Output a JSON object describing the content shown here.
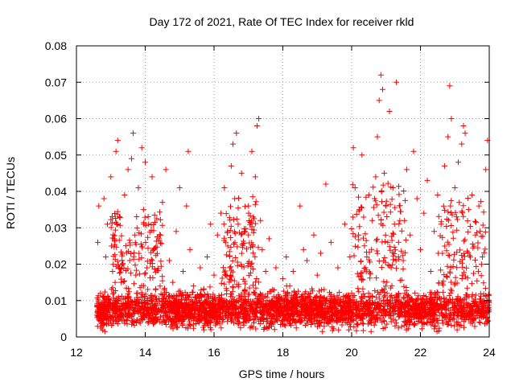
{
  "chart_data": {
    "type": "scatter",
    "title": "Day 172 of 2021, Rate Of TEC Index for receiver rkld",
    "xlabel": "GPS time / hours",
    "ylabel": "ROTI / TECUs",
    "xlim": [
      12,
      24
    ],
    "ylim": [
      0,
      0.08
    ],
    "xticks": [
      12,
      14,
      16,
      18,
      20,
      22,
      24
    ],
    "xtick_labels": [
      "12",
      "14",
      "16",
      "18",
      "20",
      "22",
      "24"
    ],
    "yticks": [
      0,
      0.01,
      0.02,
      0.03,
      0.04,
      0.05,
      0.06,
      0.07,
      0.08
    ],
    "ytick_labels": [
      "0",
      "0.01",
      "0.02",
      "0.03",
      "0.04",
      "0.05",
      "0.06",
      "0.07",
      "0.08"
    ],
    "grid": true,
    "marker": "+",
    "color": "#ff0000",
    "series": [
      {
        "name": "ROTI",
        "points": [
          [
            12.62,
            0.026
          ],
          [
            12.65,
            0.036
          ],
          [
            12.7,
            0.012
          ],
          [
            12.75,
            0.008
          ],
          [
            12.8,
            0.038
          ],
          [
            12.85,
            0.022
          ],
          [
            12.9,
            0.031
          ],
          [
            12.95,
            0.009
          ],
          [
            13.0,
            0.044
          ],
          [
            13.05,
            0.018
          ],
          [
            13.1,
            0.027
          ],
          [
            13.15,
            0.051
          ],
          [
            13.2,
            0.054
          ],
          [
            13.25,
            0.033
          ],
          [
            13.3,
            0.015
          ],
          [
            13.4,
            0.039
          ],
          [
            13.5,
            0.046
          ],
          [
            13.55,
            0.021
          ],
          [
            13.6,
            0.049
          ],
          [
            13.65,
            0.056
          ],
          [
            13.7,
            0.028
          ],
          [
            13.75,
            0.012
          ],
          [
            13.8,
            0.041
          ],
          [
            13.9,
            0.052
          ],
          [
            13.95,
            0.035
          ],
          [
            14.0,
            0.048
          ],
          [
            14.05,
            0.019
          ],
          [
            14.1,
            0.031
          ],
          [
            14.2,
            0.044
          ],
          [
            14.25,
            0.024
          ],
          [
            14.3,
            0.013
          ],
          [
            14.4,
            0.027
          ],
          [
            14.5,
            0.037
          ],
          [
            14.6,
            0.046
          ],
          [
            14.7,
            0.021
          ],
          [
            14.8,
            0.015
          ],
          [
            14.9,
            0.029
          ],
          [
            15.0,
            0.041
          ],
          [
            15.1,
            0.018
          ],
          [
            15.2,
            0.036
          ],
          [
            15.25,
            0.051
          ],
          [
            15.3,
            0.024
          ],
          [
            15.4,
            0.014
          ],
          [
            15.5,
            0.011
          ],
          [
            15.6,
            0.019
          ],
          [
            15.7,
            0.013
          ],
          [
            15.8,
            0.022
          ],
          [
            15.9,
            0.031
          ],
          [
            16.0,
            0.017
          ],
          [
            16.1,
            0.028
          ],
          [
            16.2,
            0.034
          ],
          [
            16.3,
            0.041
          ],
          [
            16.4,
            0.025
          ],
          [
            16.5,
            0.047
          ],
          [
            16.55,
            0.053
          ],
          [
            16.6,
            0.038
          ],
          [
            16.65,
            0.056
          ],
          [
            16.7,
            0.031
          ],
          [
            16.8,
            0.045
          ],
          [
            16.9,
            0.029
          ],
          [
            17.0,
            0.036
          ],
          [
            17.1,
            0.051
          ],
          [
            17.2,
            0.044
          ],
          [
            17.25,
            0.058
          ],
          [
            17.3,
            0.06
          ],
          [
            17.35,
            0.032
          ],
          [
            17.4,
            0.024
          ],
          [
            17.5,
            0.018
          ],
          [
            17.6,
            0.027
          ],
          [
            17.7,
            0.013
          ],
          [
            17.8,
            0.019
          ],
          [
            17.9,
            0.011
          ],
          [
            18.0,
            0.016
          ],
          [
            18.1,
            0.022
          ],
          [
            18.2,
            0.014
          ],
          [
            18.3,
            0.018
          ],
          [
            18.5,
            0.036
          ],
          [
            18.6,
            0.024
          ],
          [
            18.7,
            0.021
          ],
          [
            18.8,
            0.012
          ],
          [
            18.9,
            0.028
          ],
          [
            19.0,
            0.017
          ],
          [
            19.1,
            0.023
          ],
          [
            19.25,
            0.042
          ],
          [
            19.4,
            0.026
          ],
          [
            19.6,
            0.019
          ],
          [
            19.8,
            0.031
          ],
          [
            19.95,
            0.022
          ],
          [
            20.05,
            0.052
          ],
          [
            20.1,
            0.041
          ],
          [
            20.2,
            0.028
          ],
          [
            20.3,
            0.05
          ],
          [
            20.4,
            0.019
          ],
          [
            20.5,
            0.039
          ],
          [
            20.6,
            0.032
          ],
          [
            20.7,
            0.044
          ],
          [
            20.75,
            0.055
          ],
          [
            20.8,
            0.065
          ],
          [
            20.85,
            0.072
          ],
          [
            20.9,
            0.068
          ],
          [
            20.95,
            0.045
          ],
          [
            21.0,
            0.036
          ],
          [
            21.05,
            0.026
          ],
          [
            21.1,
            0.062
          ],
          [
            21.2,
            0.041
          ],
          [
            21.3,
            0.07
          ],
          [
            21.4,
            0.032
          ],
          [
            21.5,
            0.021
          ],
          [
            21.6,
            0.046
          ],
          [
            21.7,
            0.028
          ],
          [
            21.8,
            0.051
          ],
          [
            21.9,
            0.038
          ],
          [
            22.0,
            0.024
          ],
          [
            22.1,
            0.034
          ],
          [
            22.2,
            0.043
          ],
          [
            22.3,
            0.018
          ],
          [
            22.4,
            0.029
          ],
          [
            22.5,
            0.039
          ],
          [
            22.6,
            0.031
          ],
          [
            22.7,
            0.047
          ],
          [
            22.8,
            0.055
          ],
          [
            22.85,
            0.069
          ],
          [
            22.9,
            0.06
          ],
          [
            23.0,
            0.041
          ],
          [
            23.05,
            0.033
          ],
          [
            23.1,
            0.048
          ],
          [
            23.2,
            0.053
          ],
          [
            23.25,
            0.058
          ],
          [
            23.3,
            0.056
          ],
          [
            23.4,
            0.035
          ],
          [
            23.5,
            0.039
          ],
          [
            23.6,
            0.028
          ],
          [
            23.7,
            0.036
          ],
          [
            23.8,
            0.022
          ],
          [
            23.9,
            0.046
          ],
          [
            23.95,
            0.054
          ]
        ],
        "density_model": {
          "n_points": 9000,
          "seed": 172,
          "x_start": 12.6,
          "x_end": 24.0,
          "baseline_mean": 0.0075,
          "baseline_spread": 0.0045,
          "burst_windows": [
            {
              "start": 13.0,
              "end": 14.5,
              "level": 0.02
            },
            {
              "start": 16.2,
              "end": 17.3,
              "level": 0.022
            },
            {
              "start": 20.0,
              "end": 21.6,
              "level": 0.025
            },
            {
              "start": 22.5,
              "end": 23.9,
              "level": 0.022
            }
          ]
        }
      }
    ]
  }
}
